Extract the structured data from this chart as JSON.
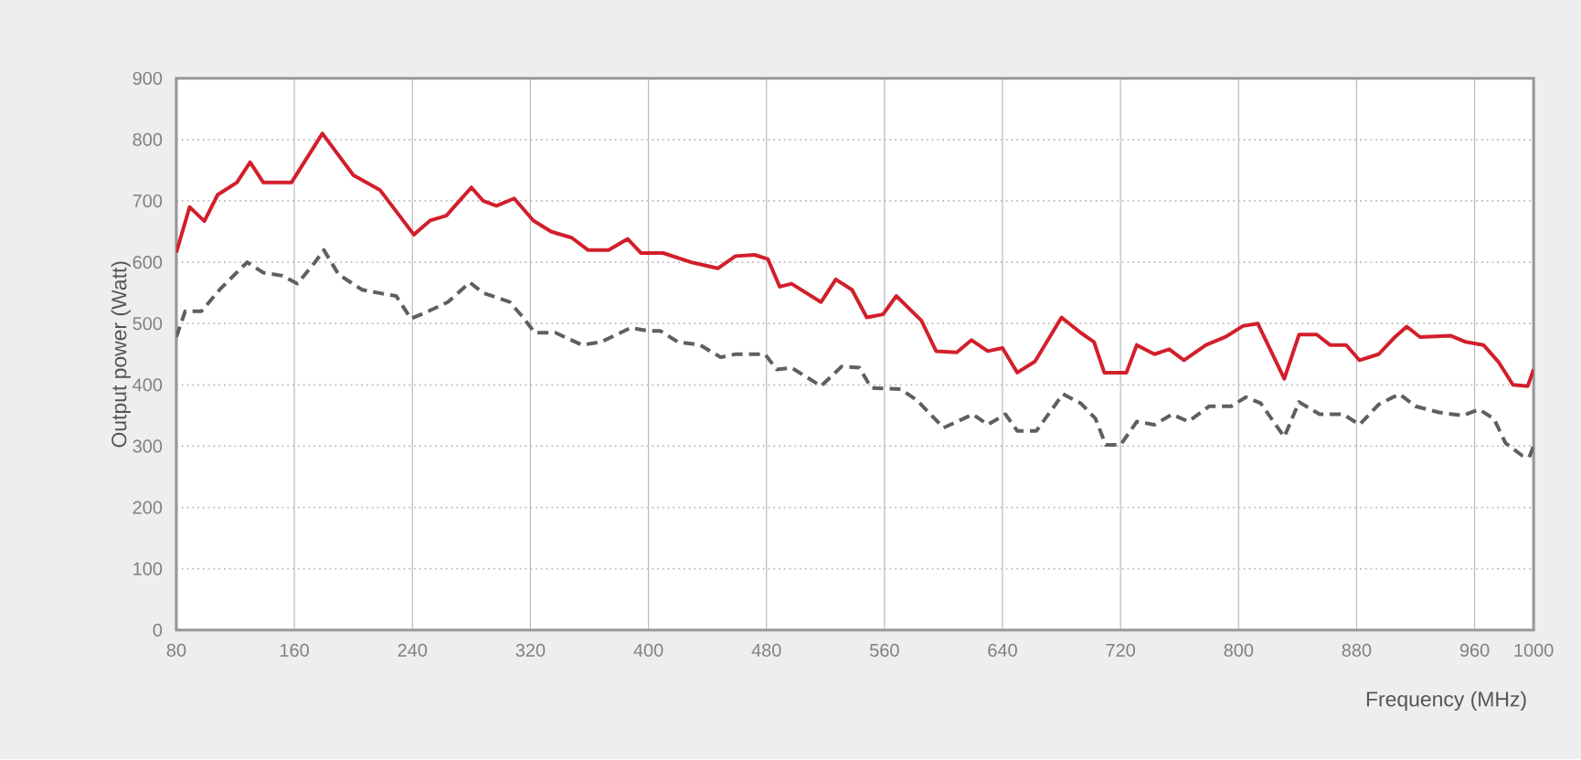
{
  "chart_data": {
    "type": "line",
    "xlabel": "Frequency (MHz)",
    "ylabel": "Output power (Watt)",
    "xlim": [
      80,
      1000
    ],
    "xticks": [
      80,
      160,
      240,
      320,
      400,
      480,
      560,
      640,
      720,
      800,
      880,
      960,
      1000
    ],
    "ylim": [
      0,
      900
    ],
    "yticks": [
      0,
      100,
      200,
      300,
      400,
      500,
      600,
      700,
      800,
      900
    ],
    "grid": true,
    "marker": "none",
    "series": [
      {
        "color": "#d21f2b",
        "line_style": "solid",
        "x": [
          80,
          89,
          99,
          108,
          121,
          130,
          139,
          158,
          179,
          200,
          218,
          241,
          252,
          263,
          280,
          288,
          297,
          309,
          322,
          334,
          348,
          359,
          373,
          386,
          395,
          410,
          429,
          447,
          459,
          472,
          481,
          489,
          497,
          517,
          527,
          538,
          548,
          559,
          568,
          585,
          595,
          609,
          619,
          630,
          640,
          650,
          662,
          680,
          693,
          702,
          709,
          724,
          731,
          743,
          753,
          763,
          778,
          791,
          803,
          813,
          831,
          841,
          853,
          862,
          873,
          882,
          895,
          906,
          914,
          923,
          944,
          954,
          966,
          976,
          986,
          996,
          1000
        ],
        "values": [
          616,
          690,
          667,
          710,
          730,
          763,
          730,
          730,
          810,
          742,
          718,
          645,
          668,
          676,
          722,
          700,
          692,
          704,
          668,
          650,
          640,
          620,
          620,
          638,
          615,
          615,
          600,
          590,
          610,
          612,
          605,
          560,
          565,
          535,
          572,
          555,
          510,
          515,
          545,
          505,
          455,
          453,
          473,
          455,
          460,
          420,
          438,
          510,
          485,
          470,
          420,
          420,
          465,
          450,
          458,
          440,
          465,
          478,
          496,
          500,
          410,
          482,
          482,
          465,
          465,
          440,
          450,
          478,
          495,
          478,
          480,
          470,
          465,
          438,
          400,
          398,
          425
        ]
      },
      {
        "color": "#5f5f5f",
        "line_style": "dashed",
        "x": [
          80,
          86,
          97,
          110,
          128,
          139,
          152,
          162,
          174,
          180,
          190,
          206,
          217,
          229,
          239,
          249,
          264,
          279,
          288,
          306,
          314,
          323,
          337,
          355,
          368,
          388,
          400,
          408,
          420,
          435,
          449,
          459,
          479,
          487,
          497,
          517,
          531,
          543,
          551,
          571,
          582,
          600,
          620,
          630,
          642,
          650,
          663,
          681,
          693,
          703,
          710,
          720,
          731,
          743,
          755,
          766,
          780,
          795,
          805,
          815,
          831,
          841,
          855,
          871,
          882,
          895,
          909,
          920,
          936,
          952,
          963,
          973,
          981,
          992,
          997,
          1000
        ],
        "values": [
          478,
          520,
          520,
          557,
          600,
          583,
          578,
          565,
          600,
          620,
          580,
          555,
          550,
          545,
          508,
          518,
          535,
          567,
          550,
          535,
          513,
          485,
          485,
          465,
          470,
          493,
          488,
          488,
          470,
          465,
          445,
          450,
          450,
          425,
          428,
          398,
          430,
          428,
          395,
          393,
          375,
          330,
          352,
          335,
          352,
          325,
          325,
          385,
          370,
          345,
          302,
          302,
          340,
          335,
          352,
          340,
          365,
          365,
          380,
          370,
          315,
          372,
          352,
          352,
          335,
          368,
          385,
          365,
          355,
          350,
          360,
          345,
          305,
          285,
          282,
          300
        ]
      }
    ]
  }
}
